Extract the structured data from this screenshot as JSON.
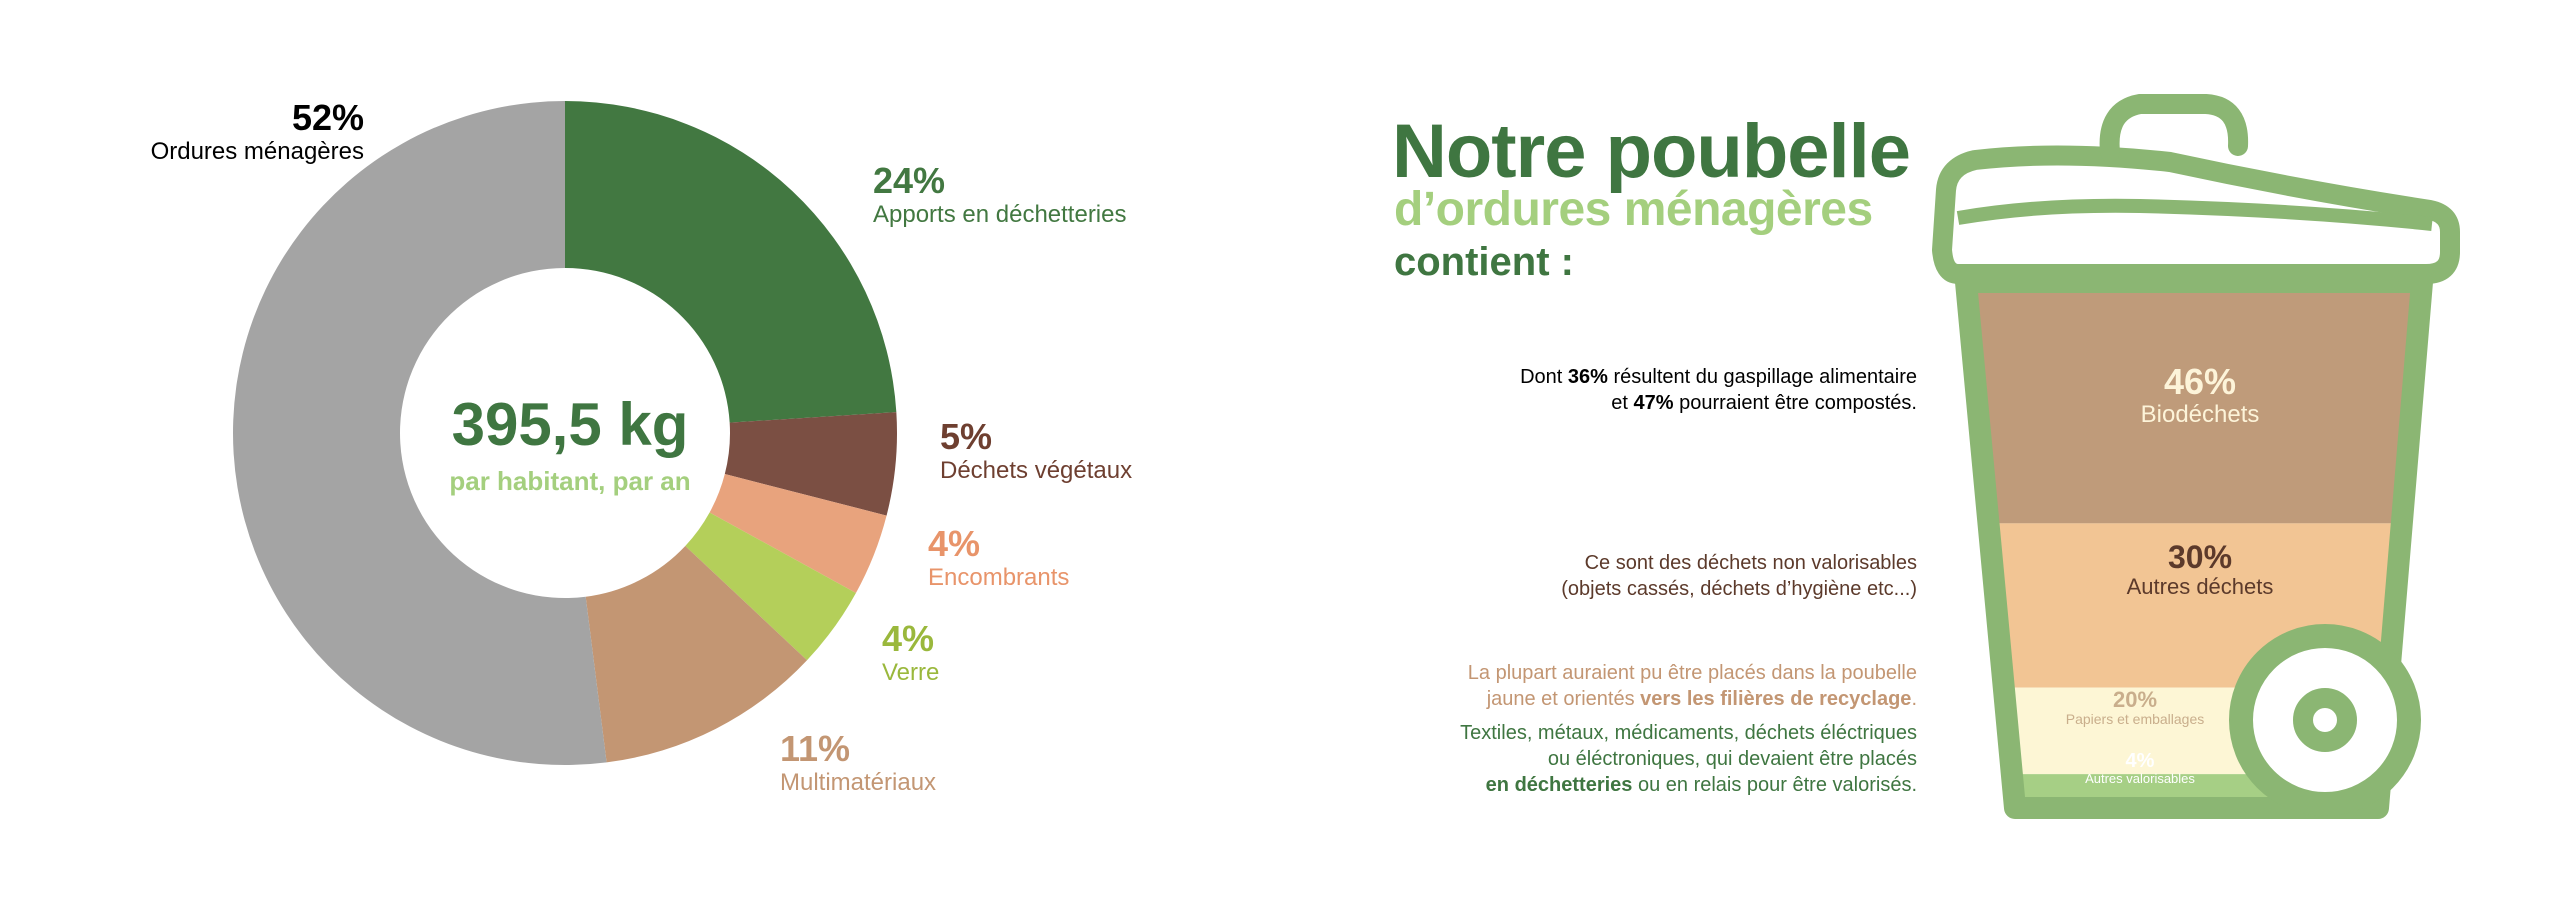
{
  "chart_data": [
    {
      "type": "pie",
      "variant": "donut",
      "center_value": "395,5 kg",
      "center_subtitle": "par habitant, par an",
      "slices": [
        {
          "label": "Apports en déchetteries",
          "value": 24,
          "value_label": "24%",
          "color": "#427841"
        },
        {
          "label": "Déchets végétaux",
          "value": 5,
          "value_label": "5%",
          "color": "#7b4f43"
        },
        {
          "label": "Encombrants",
          "value": 4,
          "value_label": "4%",
          "color": "#e8a37d"
        },
        {
          "label": "Verre",
          "value": 4,
          "value_label": "4%",
          "color": "#b4cf5a"
        },
        {
          "label": "Multimatériaux",
          "value": 11,
          "value_label": "11%",
          "color": "#c39673"
        },
        {
          "label": "Ordures ménagères",
          "value": 52,
          "value_label": "52%",
          "color": "#a4a4a4"
        }
      ],
      "label_colors": {
        "Apports en déchetteries": "#427841",
        "Déchets végétaux": "#6e3f30",
        "Encombrants": "#e8946a",
        "Verre": "#9ab83c",
        "Multimatériaux": "#c39673",
        "Ordures ménagères": "#000000"
      }
    },
    {
      "type": "bar",
      "variant": "stacked-bin",
      "segments": [
        {
          "label": "Biodéchets",
          "value": 46,
          "value_label": "46%",
          "color": "#bf9b7a",
          "text_color": "#fdf4d9"
        },
        {
          "label": "Autres déchets",
          "value": 30,
          "value_label": "30%",
          "color": "#f2c594",
          "text_color": "#5c3a2b"
        },
        {
          "label": "Papiers et emballages",
          "value": 20,
          "value_label": "20%",
          "color": "#fdf6d5",
          "text_color": "#c9ae8c"
        },
        {
          "label": "Autres valorisables",
          "value": 4,
          "value_label": "4%",
          "color": "#a6cf85",
          "text_color": "#ffffff"
        }
      ]
    }
  ],
  "title": {
    "line1": "Notre poubelle",
    "line2": "d’ordures ménagères",
    "line3": "contient :"
  },
  "notes": {
    "n1_a": "Dont ",
    "n1_b": "36%",
    "n1_c": " résultent du gaspillage alimentaire",
    "n1_d": "et ",
    "n1_e": "47%",
    "n1_f": " pourraient être compostés.",
    "n2_a": "Ce sont des déchets non valorisables",
    "n2_b": "(objets cassés, déchets d’hygiène etc...)",
    "n3_a": "La plupart auraient pu être placés dans la poubelle",
    "n3_b": "jaune et orientés ",
    "n3_c": "vers les filières de recyclage",
    "n3_d": ".",
    "n4_a": "Textiles, métaux, médicaments, déchets éléctriques",
    "n4_b": "ou éléctroniques, qui devaient être placés",
    "n4_c": "en déchetteries",
    "n4_d": " ou en relais pour être valorisés."
  },
  "colors": {
    "dark_green": "#3f7641",
    "light_green": "#a4cf7e",
    "bin_outline": "#8bb673",
    "note_dark": "#000000",
    "note_brown": "#5c3a2b",
    "note_tan": "#c39673",
    "note_green": "#3f7641"
  }
}
